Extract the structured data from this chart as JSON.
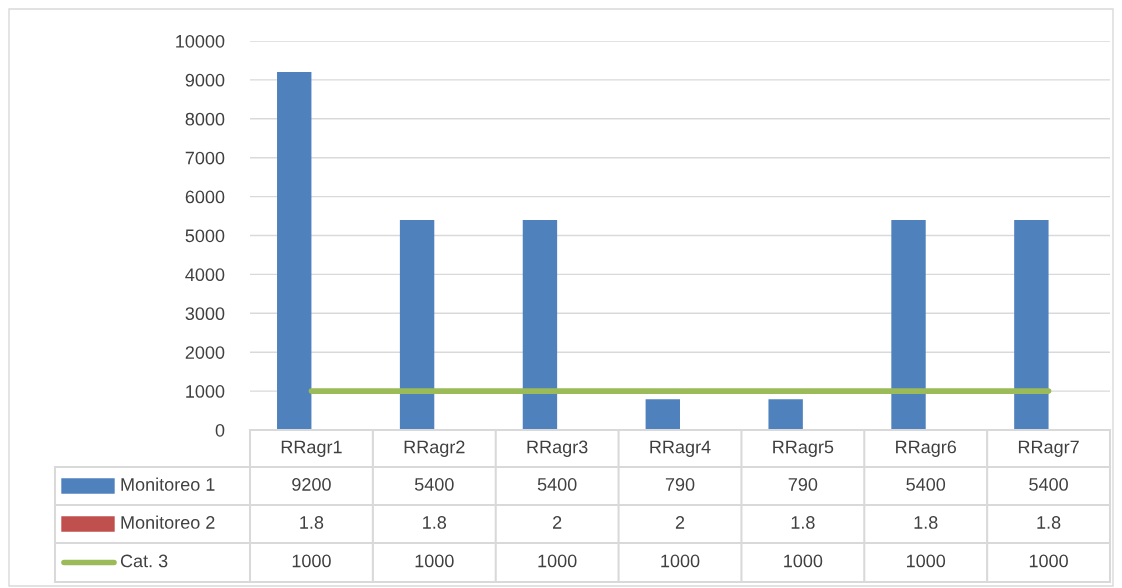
{
  "chart_data": {
    "type": "bar",
    "categories": [
      "RRagr1",
      "RRagr2",
      "RRagr3",
      "RRagr4",
      "RRagr5",
      "RRagr6",
      "RRagr7"
    ],
    "series": [
      {
        "name": "Monitoreo 1",
        "color": "#4f81bd",
        "values": [
          9200,
          5400,
          5400,
          790,
          790,
          5400,
          5400
        ]
      },
      {
        "name": "Monitoreo 2",
        "color": "#c0504d",
        "values": [
          1.8,
          1.8,
          2,
          2,
          1.8,
          1.8,
          1.8
        ]
      },
      {
        "name": "Cat. 3",
        "type": "line",
        "color": "#9bbb59",
        "values": [
          1000,
          1000,
          1000,
          1000,
          1000,
          1000,
          1000
        ]
      }
    ],
    "ylim": [
      0,
      10000
    ],
    "yticks": [
      0,
      1000,
      2000,
      3000,
      4000,
      5000,
      6000,
      7000,
      8000,
      9000,
      10000
    ],
    "grid": "y",
    "legend": "bottom",
    "data_labels": true
  }
}
